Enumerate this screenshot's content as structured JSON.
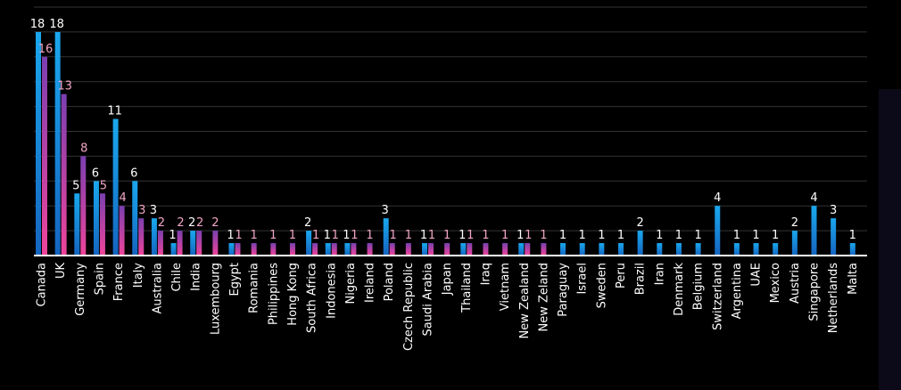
{
  "colors": {
    "background": "#000000",
    "grid": "#333333",
    "axis": "#ffffff",
    "series_a_top": "#1aa7ee",
    "series_a_bottom": "#1565c0",
    "series_b_top": "#7b3fb0",
    "series_b_bottom": "#f0449a",
    "label_a": "#ffffff",
    "label_b": "#f2a6c6"
  },
  "chart_data": {
    "type": "bar",
    "orientation": "vertical",
    "grouped": true,
    "ylim": [
      0,
      20
    ],
    "grid": true,
    "gridlines": "horizontal",
    "legend": "none",
    "title": "",
    "xlabel": "",
    "ylabel": "",
    "categories": [
      "Canada",
      "UK",
      "Germany",
      "Spain",
      "France",
      "Italy",
      "Australia",
      "Chile",
      "India",
      "Luxembourg",
      "Egypt",
      "Romania",
      "Philippines",
      "Hong Kong",
      "South Africa",
      "Indonesia",
      "Nigeria",
      "Ireland",
      "Poland",
      "Czech Republic",
      "Saudi Arabia",
      "Japan",
      "Thailand",
      "Iraq",
      "Vietnam",
      "New Zealand",
      "New Zeland",
      "Paraguay",
      "Israel",
      "Sweden",
      "Peru",
      "Brazil",
      "Iran",
      "Denmark",
      "Belgium",
      "Switzerland",
      "Argentina",
      "UAE",
      "Mexico",
      "Austria",
      "Singapore",
      "Netherlands",
      "Malta"
    ],
    "series": [
      {
        "values": [
          18,
          18,
          5,
          6,
          11,
          6,
          3,
          1,
          2,
          null,
          1,
          null,
          null,
          null,
          2,
          1,
          1,
          null,
          3,
          null,
          1,
          null,
          1,
          null,
          null,
          1,
          null,
          1,
          1,
          1,
          1,
          2,
          1,
          1,
          1,
          4,
          1,
          1,
          1,
          2,
          4,
          3,
          1
        ]
      },
      {
        "values": [
          16,
          13,
          8,
          5,
          4,
          3,
          2,
          2,
          2,
          2,
          1,
          1,
          1,
          1,
          1,
          1,
          1,
          1,
          1,
          1,
          1,
          1,
          1,
          1,
          1,
          1,
          1,
          null,
          null,
          null,
          null,
          null,
          null,
          null,
          null,
          null,
          null,
          null,
          null,
          null,
          null,
          null,
          null
        ]
      }
    ]
  }
}
